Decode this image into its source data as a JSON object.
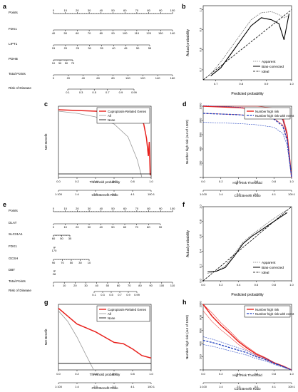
{
  "panel_labels": [
    "a",
    "b",
    "c",
    "d",
    "e",
    "f",
    "g",
    "h"
  ],
  "nomogram_a": {
    "rows": [
      "Points",
      "FDX1",
      "LIPT1",
      "PDHB",
      "Total Points",
      "Risk of Disease"
    ],
    "points_ticks": [
      "0",
      "10",
      "20",
      "30",
      "40",
      "50",
      "60",
      "70",
      "80",
      "90",
      "100"
    ],
    "fdx1_ticks": [
      "40",
      "50",
      "60",
      "70",
      "80",
      "90",
      "100",
      "110",
      "120",
      "130",
      "140"
    ],
    "lipt1_ticks": [
      "15",
      "20",
      "25",
      "30",
      "35",
      "40",
      "45",
      "50",
      "55"
    ],
    "pdhb_ticks": [
      "10",
      "30",
      "50",
      "70"
    ],
    "total_ticks": [
      "0",
      "20",
      "40",
      "60",
      "80",
      "100",
      "120",
      "140",
      "160"
    ],
    "risk_ticks": [
      "0.1",
      "0.3",
      "0.5",
      "0.7",
      "0.9",
      "0.99"
    ]
  },
  "nomogram_e": {
    "rows": [
      "Points",
      "DLAT",
      "SLC31A1",
      "FDX1",
      "GCSH",
      "DBT",
      "Total Points",
      "Risk of Disease"
    ],
    "points_ticks": [
      "0",
      "10",
      "20",
      "30",
      "40",
      "50",
      "60",
      "70",
      "80",
      "90",
      "100"
    ],
    "dlat_ticks": [
      "0",
      "10",
      "20",
      "30",
      "40",
      "50",
      "60",
      "70",
      "80",
      "90"
    ],
    "slc31a1_ticks": [
      "60",
      "50",
      "35"
    ],
    "fdx1_ticks": [
      "170"
    ],
    "gcsh_ticks": [
      "90",
      "70",
      "50",
      "30",
      "10"
    ],
    "dbt_ticks": [
      "28"
    ],
    "total_ticks": [
      "0",
      "10",
      "20",
      "30",
      "40",
      "50",
      "60",
      "70",
      "80",
      "90",
      "100",
      "110"
    ],
    "risk_ticks": [
      "0.1",
      "0.3",
      "0.5",
      "0.7",
      "0.9",
      "0.99"
    ]
  },
  "calib_b": {
    "xlabel": "Predicted probability",
    "ylabel": "Actual probability",
    "xticks": [
      "0.7",
      "0.8",
      "0.9",
      "1.0"
    ],
    "yticks": [
      "0.7",
      "0.8",
      "0.9",
      "1.0"
    ],
    "legend": [
      "Apparent",
      "Bias-corrected",
      "Ideal"
    ]
  },
  "calib_f": {
    "xlabel": "Predicted probability",
    "ylabel": "Actual probability",
    "xticks": [
      "0.0",
      "0.2",
      "0.4",
      "0.6",
      "0.8",
      "1.0"
    ],
    "yticks": [
      "0.0",
      "0.2",
      "0.4",
      "0.6",
      "0.8",
      "1.0"
    ],
    "legend": [
      "Apparent",
      "Bias-corrected",
      "Ideal"
    ]
  },
  "dca_c": {
    "xlabel": "Threshold probability",
    "ylabel": "Net Benefit",
    "xlabel2": "Cost:Benefit Ratio",
    "xticks": [
      "0.0",
      "0.2",
      "0.4",
      "0.6",
      "0.8",
      "1.0"
    ],
    "cb_ticks": [
      "1:100",
      "1:4",
      "2:3",
      "3:2",
      "4:1",
      "100:1"
    ],
    "legend": [
      "Cuproptosis-Related Genes",
      "All",
      "None"
    ]
  },
  "dca_g": {
    "xlabel": "Threshold probability",
    "ylabel": "Net Benefit",
    "xlabel2": "Cost:Benefit Ratio",
    "xticks": [
      "0.0",
      "0.2",
      "0.4",
      "0.6",
      "0.8",
      "1.0"
    ],
    "cb_ticks": [
      "1:100",
      "1:4",
      "2:3",
      "3:2",
      "4:1",
      "100:1"
    ],
    "legend": [
      "Cuproptosis-Related Genes",
      "All",
      "None"
    ]
  },
  "cic_d": {
    "xlabel": "High Risk Threshold",
    "ylabel": "Number high risk (out of 1000)",
    "xlabel2": "Cost:Benefit Ratio",
    "xticks": [
      "0.0",
      "0.2",
      "0.4",
      "0.6",
      "0.8",
      "1.0"
    ],
    "yticks": [
      "0",
      "200",
      "400",
      "600",
      "800",
      "1000"
    ],
    "cb_ticks": [
      "1:100",
      "1:4",
      "2:3",
      "3:2",
      "4:1",
      "100:1"
    ],
    "legend": [
      "Number high risk",
      "Number high risk with event"
    ]
  },
  "cic_h": {
    "xlabel": "High Risk Threshold",
    "ylabel": "Number high risk (out of 1000)",
    "xlabel2": "Cost:Benefit Ratio",
    "xticks": [
      "0.0",
      "0.2",
      "0.4",
      "0.6",
      "0.8",
      "1.0"
    ],
    "yticks": [
      "0",
      "200",
      "400",
      "600",
      "800",
      "1000"
    ],
    "cb_ticks": [
      "1:100",
      "1:4",
      "2:3",
      "3:2",
      "4:1",
      "100:1"
    ],
    "legend": [
      "Number high risk",
      "Number high risk with event"
    ]
  },
  "colors": {
    "red": "#e8211d",
    "blue": "#1f3fbf",
    "gray": "#9a9a9a",
    "black": "#000000"
  },
  "chart_data": [
    {
      "type": "line",
      "panel": "b",
      "xlabel": "Predicted probability",
      "ylabel": "Actual probability",
      "xlim": [
        0.65,
        1.0
      ],
      "ylim": [
        0.65,
        1.02
      ],
      "series": [
        {
          "name": "Apparent",
          "x": [
            0.68,
            0.72,
            0.76,
            0.8,
            0.84,
            0.88,
            0.92,
            0.95,
            0.97,
            0.99
          ],
          "y": [
            0.68,
            0.74,
            0.81,
            0.88,
            0.95,
            0.985,
            0.99,
            0.975,
            0.96,
            0.97
          ]
        },
        {
          "name": "Bias-corrected",
          "x": [
            0.68,
            0.72,
            0.76,
            0.8,
            0.84,
            0.88,
            0.92,
            0.95,
            0.97,
            0.99
          ],
          "y": [
            0.67,
            0.71,
            0.78,
            0.85,
            0.92,
            0.96,
            0.95,
            0.93,
            0.85,
            0.98
          ]
        },
        {
          "name": "Ideal",
          "x": [
            0.65,
            1.0
          ],
          "y": [
            0.65,
            1.0
          ]
        }
      ]
    },
    {
      "type": "line",
      "panel": "f",
      "xlabel": "Predicted probability",
      "ylabel": "Actual probability",
      "xlim": [
        0.0,
        1.0
      ],
      "ylim": [
        0.0,
        1.0
      ],
      "series": [
        {
          "name": "Apparent",
          "x": [
            0.05,
            0.15,
            0.25,
            0.35,
            0.45,
            0.55,
            0.65,
            0.75,
            0.85,
            0.95
          ],
          "y": [
            0.1,
            0.13,
            0.2,
            0.36,
            0.52,
            0.62,
            0.71,
            0.8,
            0.88,
            0.96
          ]
        },
        {
          "name": "Bias-corrected",
          "x": [
            0.05,
            0.15,
            0.25,
            0.35,
            0.45,
            0.55,
            0.65,
            0.75,
            0.85,
            0.95
          ],
          "y": [
            0.12,
            0.13,
            0.18,
            0.33,
            0.5,
            0.6,
            0.68,
            0.76,
            0.84,
            0.92
          ]
        },
        {
          "name": "Ideal",
          "x": [
            0.0,
            1.0
          ],
          "y": [
            0.0,
            1.0
          ]
        }
      ]
    },
    {
      "type": "line",
      "panel": "c",
      "xlabel": "Threshold probability",
      "ylabel": "Net Benefit",
      "xlim": [
        0.0,
        1.0
      ],
      "ylim": [
        -0.05,
        0.95
      ],
      "series": [
        {
          "name": "Cuproptosis-Related Genes",
          "x": [
            0.0,
            0.2,
            0.4,
            0.6,
            0.8,
            0.88,
            0.92,
            0.95,
            0.97,
            0.98,
            0.99
          ],
          "y": [
            0.9,
            0.89,
            0.88,
            0.87,
            0.84,
            0.79,
            0.7,
            0.5,
            0.25,
            0.45,
            -0.02
          ]
        },
        {
          "name": "All",
          "x": [
            0.0,
            0.2,
            0.4,
            0.6,
            0.75,
            0.85,
            0.9
          ],
          "y": [
            0.88,
            0.85,
            0.8,
            0.7,
            0.52,
            0.2,
            -0.05
          ]
        },
        {
          "name": "None",
          "x": [
            0.0,
            1.0
          ],
          "y": [
            0.0,
            0.0
          ]
        }
      ]
    },
    {
      "type": "line",
      "panel": "g",
      "xlabel": "Threshold probability",
      "ylabel": "Net Benefit",
      "xlim": [
        0.0,
        1.0
      ],
      "ylim": [
        -0.05,
        0.45
      ],
      "series": [
        {
          "name": "Cuproptosis-Related Genes",
          "x": [
            0.0,
            0.1,
            0.2,
            0.3,
            0.4,
            0.5,
            0.6,
            0.7,
            0.8,
            0.9,
            1.0
          ],
          "y": [
            0.42,
            0.36,
            0.3,
            0.27,
            0.24,
            0.2,
            0.16,
            0.15,
            0.11,
            0.06,
            0.04
          ]
        },
        {
          "name": "All",
          "x": [
            0.0,
            0.1,
            0.2,
            0.3,
            0.38
          ],
          "y": [
            0.4,
            0.32,
            0.2,
            0.06,
            -0.05
          ]
        },
        {
          "name": "None",
          "x": [
            0.0,
            1.0
          ],
          "y": [
            0.0,
            0.0
          ]
        }
      ]
    },
    {
      "type": "line",
      "panel": "d",
      "xlabel": "High Risk Threshold",
      "ylabel": "Number high risk (out of 1000)",
      "xlim": [
        0.0,
        1.0
      ],
      "ylim": [
        0,
        1000
      ],
      "series": [
        {
          "name": "Number high risk",
          "x": [
            0.0,
            0.2,
            0.4,
            0.6,
            0.8,
            0.9,
            0.95,
            1.0
          ],
          "y": [
            1000,
            990,
            980,
            960,
            920,
            820,
            600,
            0
          ]
        },
        {
          "name": "Number high risk with event",
          "x": [
            0.0,
            0.2,
            0.4,
            0.6,
            0.8,
            0.9,
            0.95,
            1.0
          ],
          "y": [
            900,
            890,
            880,
            860,
            820,
            720,
            520,
            0
          ]
        }
      ]
    },
    {
      "type": "line",
      "panel": "h",
      "xlabel": "High Risk Threshold",
      "ylabel": "Number high risk (out of 1000)",
      "xlim": [
        0.0,
        1.0
      ],
      "ylim": [
        0,
        1000
      ],
      "series": [
        {
          "name": "Number high risk",
          "x": [
            0.0,
            0.1,
            0.2,
            0.3,
            0.4,
            0.5,
            0.6,
            0.7,
            0.8,
            0.9,
            1.0
          ],
          "y": [
            1000,
            820,
            680,
            560,
            430,
            330,
            240,
            180,
            110,
            60,
            0
          ]
        },
        {
          "name": "Number high risk with event",
          "x": [
            0.0,
            0.1,
            0.2,
            0.3,
            0.4,
            0.5,
            0.6,
            0.7,
            0.8,
            0.9,
            1.0
          ],
          "y": [
            450,
            420,
            380,
            340,
            300,
            260,
            200,
            160,
            100,
            50,
            0
          ]
        }
      ]
    }
  ]
}
